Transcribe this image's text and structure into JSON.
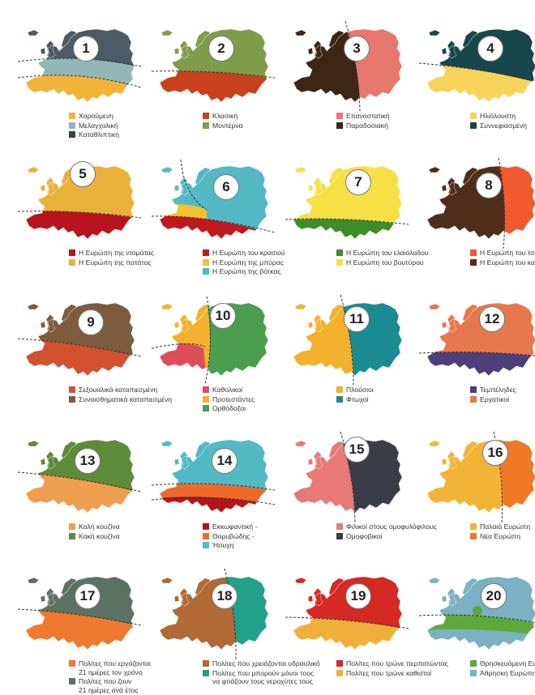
{
  "maps": [
    {
      "number": "1",
      "colors": [
        "#4a5a66",
        "#93b7b8",
        "#f1b437"
      ],
      "legend": [
        {
          "label": "Χαρούμενη",
          "color": "#f1b437"
        },
        {
          "label": "Μελαγχολική",
          "color": "#93b7b8"
        },
        {
          "label": "Καταθλιπτική",
          "color": "#36424d"
        }
      ]
    },
    {
      "number": "2",
      "colors": [
        "#7f9c4a",
        "#c9401c"
      ],
      "legend": [
        {
          "label": "Κλασική",
          "color": "#c9401c"
        },
        {
          "label": "Μοντέρνα",
          "color": "#7f9c4a"
        }
      ]
    },
    {
      "number": "3",
      "colors": [
        "#3d2614",
        "#e6786e"
      ],
      "legend": [
        {
          "label": "Επαναστατική",
          "color": "#e6786e"
        },
        {
          "label": "Παραδοσιακή",
          "color": "#3d2614"
        }
      ]
    },
    {
      "number": "4",
      "colors": [
        "#17474c",
        "#f6d45a"
      ],
      "legend": [
        {
          "label": "Ηλιόλουστη",
          "color": "#f6d45a"
        },
        {
          "label": "Συννεφιασμένη",
          "color": "#17474c"
        }
      ]
    },
    {
      "number": "5",
      "colors": [
        "#eab13a",
        "#b7141e"
      ],
      "legend": [
        {
          "label": "Η Ευρώπη της ντομάτας",
          "color": "#b7141e"
        },
        {
          "label": "Η Ευρώπη της πατάτας",
          "color": "#eab13a"
        }
      ]
    },
    {
      "number": "6",
      "colors": [
        "#53b9c4",
        "#f2c230",
        "#c1181e"
      ],
      "legend": [
        {
          "label": "Η Ευρώπη του κρασιού",
          "color": "#c1181e"
        },
        {
          "label": "Η Ευρώπη της μπύρας",
          "color": "#f2c230"
        },
        {
          "label": "Η Ευρώπη της βότκας",
          "color": "#53b9c4"
        }
      ]
    },
    {
      "number": "7",
      "colors": [
        "#f6e045",
        "#3e8c2c"
      ],
      "legend": [
        {
          "label": "Η Ευρώπη του ελαιόλαδου",
          "color": "#3e8c2c"
        },
        {
          "label": "Η Ευρώπη του βουτύρου",
          "color": "#f6e045"
        }
      ]
    },
    {
      "number": "8",
      "colors": [
        "#4e2e1a",
        "#f05a2e"
      ],
      "legend": [
        {
          "label": "Η Ευρώπη του τσαγιού",
          "color": "#f05a2e"
        },
        {
          "label": "Η Ευρώπη του καφέ",
          "color": "#4e2e1a"
        }
      ]
    },
    {
      "number": "9",
      "colors": [
        "#7d5c3e",
        "#d2512f"
      ],
      "legend": [
        {
          "label": "Σεξουαλικά καταπιεσμένη",
          "color": "#d2512f"
        },
        {
          "label": "Συναισθηματικά καταπιεσμένη",
          "color": "#7d5c3e"
        }
      ]
    },
    {
      "number": "10",
      "colors": [
        "#f2b22d",
        "#de4d5a",
        "#4b9d4f"
      ],
      "legend": [
        {
          "label": "Καθολικοί",
          "color": "#de4d5a"
        },
        {
          "label": "Προτεστάντες",
          "color": "#f2b22d"
        },
        {
          "label": "Ορθόδοξοι",
          "color": "#4b9d4f"
        }
      ]
    },
    {
      "number": "11",
      "colors": [
        "#f2b22d",
        "#1b8b93"
      ],
      "legend": [
        {
          "label": "Πλούσιοι",
          "color": "#f2b22d"
        },
        {
          "label": "Φτωχοί",
          "color": "#1b8b93"
        }
      ]
    },
    {
      "number": "12",
      "colors": [
        "#e7784d",
        "#4c3f7a"
      ],
      "legend": [
        {
          "label": "Τεμπέληδες",
          "color": "#4c3f7a"
        },
        {
          "label": "Εργατικοί",
          "color": "#e7784d"
        }
      ]
    },
    {
      "number": "13",
      "colors": [
        "#5e8b3a",
        "#ef9d4e"
      ],
      "legend": [
        {
          "label": "Καλή κουζίνα",
          "color": "#ef9d4e"
        },
        {
          "label": "Κακή κουζίνα",
          "color": "#5e8b3a"
        }
      ]
    },
    {
      "number": "14",
      "colors": [
        "#53b9c4",
        "#ef6a2a",
        "#b4141b"
      ],
      "legend": [
        {
          "label": "Εκκωφαντική -",
          "color": "#b4141b"
        },
        {
          "label": "Θορυβώδης -",
          "color": "#ef6a2a"
        },
        {
          "label": "Ήσυχη",
          "color": "#53b9c4"
        }
      ]
    },
    {
      "number": "15",
      "colors": [
        "#e77a76",
        "#3a3d48"
      ],
      "legend": [
        {
          "label": "Φιλικοί στους ομοφυλόφιλους",
          "color": "#e77a76"
        },
        {
          "label": "Ομοφοβικοί",
          "color": "#3a3d48"
        }
      ]
    },
    {
      "number": "16",
      "colors": [
        "#f1b437",
        "#ef7a26"
      ],
      "legend": [
        {
          "label": "Παλαιά Ευρώπη",
          "color": "#f1b437"
        },
        {
          "label": "Νέα Ευρώπη",
          "color": "#ef7a26"
        }
      ]
    },
    {
      "number": "17",
      "colors": [
        "#5b7262",
        "#ee7a2f"
      ],
      "legend": [
        {
          "label": "Πολίτες που εργάζονται\n21 ημέρες τον χρόνο",
          "color": "#ee7a2f"
        },
        {
          "label": "Πολίτες που ζουν\n21 ημέρες ανά έτος",
          "color": "#5b7262"
        }
      ]
    },
    {
      "number": "18",
      "colors": [
        "#b16a35",
        "#22a089"
      ],
      "legend": [
        {
          "label": "Πολίτες που χρειάζονται υδραυλικό",
          "color": "#b16a35"
        },
        {
          "label": "Πολίτες που μπορούν μόνοι τους\nνα φτιάξουν τους νεροχύτες τους",
          "color": "#22a089"
        }
      ]
    },
    {
      "number": "19",
      "colors": [
        "#d42a23",
        "#efb03b"
      ],
      "legend": [
        {
          "label": "Πολίτες που τρώνε περπατώντας",
          "color": "#d42a23"
        },
        {
          "label": "Πολίτες που τρώνε καθιστοί",
          "color": "#efb03b"
        }
      ]
    },
    {
      "number": "20",
      "colors": [
        "#7bb1c2",
        "#5ea839"
      ],
      "legend": [
        {
          "label": "Θρησκευόμενη Ευρώπη",
          "color": "#5ea839"
        },
        {
          "label": "Άθρησκη Ευρώπη",
          "color": "#7bb1c2"
        }
      ]
    }
  ]
}
